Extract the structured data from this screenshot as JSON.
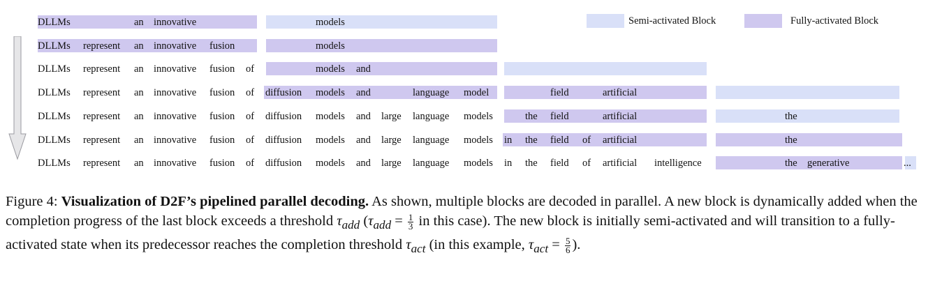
{
  "legend": {
    "semi_label": "Semi-activated Block",
    "full_label": "Fully-activated Block",
    "semi_color": "#d9e0f8",
    "full_color": "#cfc8ef"
  },
  "rows": [
    {
      "blocks": [
        [
          "full",
          54,
          368
        ],
        [
          "semi",
          381,
          712
        ]
      ],
      "tokens": [
        [
          "DLLMs",
          54
        ],
        [
          "an",
          192
        ],
        [
          "innovative",
          220
        ],
        [
          "models",
          452
        ]
      ]
    },
    {
      "blocks": [
        [
          "full",
          54,
          368
        ],
        [
          "full",
          381,
          712
        ]
      ],
      "tokens": [
        [
          "DLLMs",
          54
        ],
        [
          "represent",
          119
        ],
        [
          "an",
          192
        ],
        [
          "innovative",
          220
        ],
        [
          "fusion",
          300
        ],
        [
          "models",
          452
        ]
      ]
    },
    {
      "blocks": [
        [
          "full",
          381,
          712
        ],
        [
          "semi",
          722,
          1012
        ]
      ],
      "tokens": [
        [
          "DLLMs",
          54
        ],
        [
          "represent",
          119
        ],
        [
          "an",
          192
        ],
        [
          "innovative",
          220
        ],
        [
          "fusion",
          300
        ],
        [
          "of",
          352
        ],
        [
          "models",
          452
        ],
        [
          "and",
          510
        ]
      ]
    },
    {
      "blocks": [
        [
          "full",
          378,
          712
        ],
        [
          "full",
          722,
          1012
        ],
        [
          "semi",
          1025,
          1288
        ]
      ],
      "tokens": [
        [
          "DLLMs",
          54
        ],
        [
          "represent",
          119
        ],
        [
          "an",
          192
        ],
        [
          "innovative",
          220
        ],
        [
          "fusion",
          300
        ],
        [
          "of",
          352
        ],
        [
          "diffusion",
          380
        ],
        [
          "models",
          452
        ],
        [
          "and",
          510
        ],
        [
          "language",
          591
        ],
        [
          "model",
          664
        ],
        [
          "field",
          788
        ],
        [
          "artificial",
          863
        ]
      ]
    },
    {
      "blocks": [
        [
          "full",
          722,
          1012
        ],
        [
          "semi",
          1025,
          1288
        ]
      ],
      "tokens": [
        [
          "DLLMs",
          54
        ],
        [
          "represent",
          119
        ],
        [
          "an",
          192
        ],
        [
          "innovative",
          220
        ],
        [
          "fusion",
          300
        ],
        [
          "of",
          352
        ],
        [
          "diffusion",
          380
        ],
        [
          "models",
          452
        ],
        [
          "and",
          510
        ],
        [
          "large",
          546
        ],
        [
          "language",
          591
        ],
        [
          "models",
          664
        ],
        [
          "the",
          752
        ],
        [
          "field",
          788
        ],
        [
          "artificial",
          863
        ],
        [
          "the",
          1124
        ]
      ]
    },
    {
      "blocks": [
        [
          "full",
          720,
          1012
        ],
        [
          "full",
          1025,
          1292
        ]
      ],
      "tokens": [
        [
          "DLLMs",
          54
        ],
        [
          "represent",
          119
        ],
        [
          "an",
          192
        ],
        [
          "innovative",
          220
        ],
        [
          "fusion",
          300
        ],
        [
          "of",
          352
        ],
        [
          "diffusion",
          380
        ],
        [
          "models",
          452
        ],
        [
          "and",
          510
        ],
        [
          "large",
          546
        ],
        [
          "language",
          591
        ],
        [
          "models",
          664
        ],
        [
          "in",
          722
        ],
        [
          "the",
          752
        ],
        [
          "field",
          788
        ],
        [
          "of",
          834
        ],
        [
          "artificial",
          863
        ],
        [
          "the",
          1124
        ]
      ]
    },
    {
      "blocks": [
        [
          "full",
          1025,
          1292
        ],
        [
          "semi",
          1296,
          1312
        ]
      ],
      "tokens": [
        [
          "DLLMs",
          54
        ],
        [
          "represent",
          119
        ],
        [
          "an",
          192
        ],
        [
          "innovative",
          220
        ],
        [
          "fusion",
          300
        ],
        [
          "of",
          352
        ],
        [
          "diffusion",
          380
        ],
        [
          "models",
          452
        ],
        [
          "and",
          510
        ],
        [
          "large",
          546
        ],
        [
          "language",
          591
        ],
        [
          "models",
          664
        ],
        [
          "in",
          722
        ],
        [
          "the",
          752
        ],
        [
          "field",
          788
        ],
        [
          "of",
          834
        ],
        [
          "artificial",
          863
        ],
        [
          "intelligence",
          937
        ],
        [
          "the",
          1124
        ],
        [
          "generative",
          1156
        ],
        [
          "...",
          1294
        ]
      ]
    }
  ],
  "caption": {
    "prefix": "Figure 4: ",
    "bold": "Visualization of D2F’s pipelined parallel decoding.",
    "t1": " As shown, multiple blocks are decoded in parallel. A new block is dynamically added when the completion progress of the last block exceeds a threshold ",
    "tau_add": "τ",
    "sub_add": "add",
    "t2": " (",
    "t3": " = ",
    "frac1_num": "1",
    "frac1_den": "3",
    "t4": " in this case). The new block is initially semi-activated and will transition to a fully-activated state when its predecessor reaches the completion threshold ",
    "sub_act": "act",
    "t5": " (in this example, ",
    "t6": " = ",
    "frac2_num": "5",
    "frac2_den": "6",
    "t7": ")."
  }
}
